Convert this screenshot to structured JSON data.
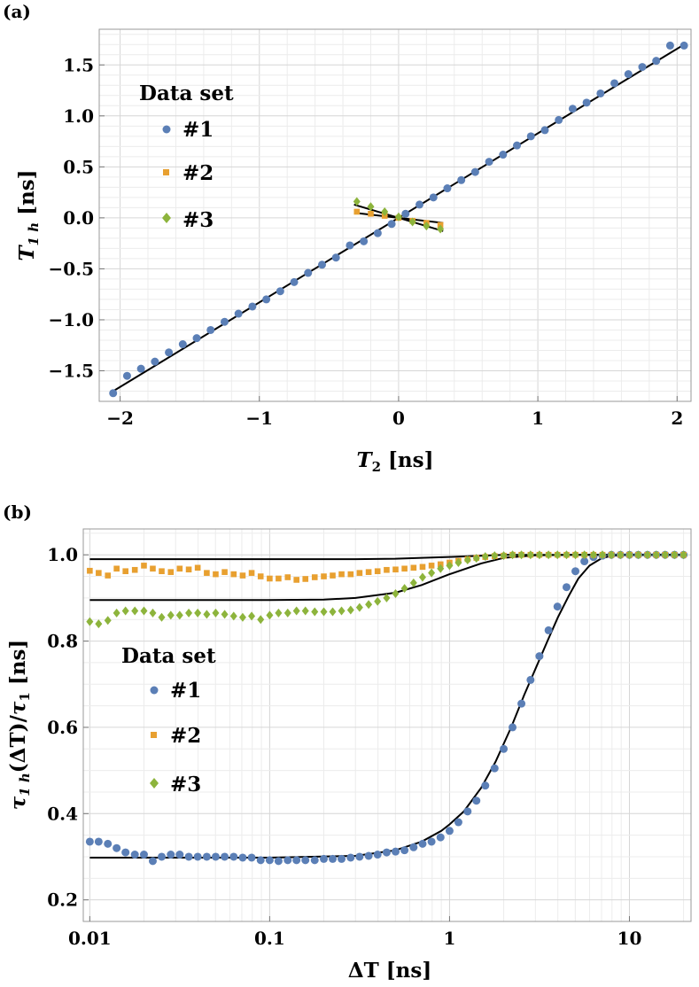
{
  "colors": {
    "set1": "#5b7fb6",
    "set2": "#e8a030",
    "set3": "#8db43c",
    "fit": "#000000"
  },
  "chart_data": [
    {
      "panel_label": "(a)",
      "type": "scatter",
      "xlabel": "T2 [ns]",
      "ylabel": "T1h [ns]",
      "xlim": [
        -2.15,
        2.1
      ],
      "ylim": [
        -1.8,
        1.85
      ],
      "x_scale": "linear",
      "grid": true,
      "legend": {
        "title": "Data set",
        "position": "upper-left"
      },
      "x_ticks": [
        "−2",
        "−1",
        "0",
        "1",
        "2"
      ],
      "x_tick_values": [
        -2,
        -1,
        0,
        1,
        2
      ],
      "y_ticks": [
        "−1.5",
        "−1.0",
        "−0.5",
        "0.0",
        "0.5",
        "1.0",
        "1.5"
      ],
      "y_tick_values": [
        -1.5,
        -1.0,
        -0.5,
        0.0,
        0.5,
        1.0,
        1.5
      ],
      "series": [
        {
          "name": "#1",
          "marker": "circle",
          "color": "#5b7fb6",
          "x": [
            -2.05,
            -1.95,
            -1.85,
            -1.75,
            -1.65,
            -1.55,
            -1.45,
            -1.35,
            -1.25,
            -1.15,
            -1.05,
            -0.95,
            -0.85,
            -0.75,
            -0.65,
            -0.55,
            -0.45,
            -0.35,
            -0.25,
            -0.15,
            -0.05,
            0.05,
            0.15,
            0.25,
            0.35,
            0.45,
            0.55,
            0.65,
            0.75,
            0.85,
            0.95,
            1.05,
            1.15,
            1.25,
            1.35,
            1.45,
            1.55,
            1.65,
            1.75,
            1.85,
            1.95,
            2.05
          ],
          "y": [
            -1.72,
            -1.55,
            -1.48,
            -1.41,
            -1.32,
            -1.24,
            -1.18,
            -1.1,
            -1.02,
            -0.94,
            -0.87,
            -0.8,
            -0.72,
            -0.63,
            -0.54,
            -0.46,
            -0.39,
            -0.27,
            -0.23,
            -0.15,
            -0.06,
            0.04,
            0.13,
            0.2,
            0.29,
            0.37,
            0.45,
            0.55,
            0.62,
            0.71,
            0.8,
            0.86,
            0.96,
            1.07,
            1.13,
            1.22,
            1.32,
            1.41,
            1.48,
            1.54,
            1.69,
            1.69
          ]
        },
        {
          "name": "#2",
          "marker": "square",
          "color": "#e8a030",
          "x": [
            -0.3,
            -0.2,
            -0.1,
            0.0,
            0.1,
            0.2,
            0.3
          ],
          "y": [
            0.06,
            0.04,
            0.02,
            0.0,
            -0.03,
            -0.05,
            -0.07
          ]
        },
        {
          "name": "#3",
          "marker": "diamond",
          "color": "#8db43c",
          "x": [
            -0.3,
            -0.2,
            -0.1,
            0.0,
            0.1,
            0.2,
            0.3
          ],
          "y": [
            0.16,
            0.11,
            0.06,
            0.01,
            -0.04,
            -0.08,
            -0.11
          ]
        }
      ],
      "fits": [
        {
          "x": [
            -2.05,
            2.05
          ],
          "y": [
            -1.7,
            1.7
          ]
        },
        {
          "x": [
            -0.32,
            0.32
          ],
          "y": [
            0.05,
            -0.05
          ]
        },
        {
          "x": [
            -0.32,
            0.32
          ],
          "y": [
            0.13,
            -0.13
          ]
        }
      ]
    },
    {
      "panel_label": "(b)",
      "type": "scatter",
      "xlabel": "ΔT [ns]",
      "ylabel": "τ1h(ΔT)/τ1 [ns]",
      "xlim": [
        0.0092,
        22
      ],
      "ylim": [
        0.15,
        1.06
      ],
      "x_scale": "log",
      "grid": true,
      "legend": {
        "title": "Data set",
        "position": "middle-left"
      },
      "x_ticks": [
        "0.01",
        "0.1",
        "1",
        "10"
      ],
      "x_tick_values": [
        0.01,
        0.1,
        1,
        10
      ],
      "y_ticks": [
        "0.2",
        "0.4",
        "0.6",
        "0.8",
        "1.0"
      ],
      "y_tick_values": [
        0.2,
        0.4,
        0.6,
        0.8,
        1.0
      ],
      "series": [
        {
          "name": "#1",
          "marker": "circle",
          "color": "#5b7fb6",
          "x": [
            0.01,
            0.0112,
            0.0126,
            0.0141,
            0.0158,
            0.0178,
            0.02,
            0.0224,
            0.0251,
            0.0282,
            0.0316,
            0.0355,
            0.0398,
            0.0447,
            0.0501,
            0.0562,
            0.0631,
            0.0708,
            0.0794,
            0.0891,
            0.1,
            0.112,
            0.126,
            0.141,
            0.158,
            0.178,
            0.2,
            0.224,
            0.251,
            0.282,
            0.316,
            0.355,
            0.398,
            0.447,
            0.501,
            0.562,
            0.631,
            0.708,
            0.794,
            0.891,
            1.0,
            1.12,
            1.26,
            1.41,
            1.58,
            1.78,
            2.0,
            2.24,
            2.51,
            2.82,
            3.16,
            3.55,
            3.98,
            4.47,
            5.01,
            5.62,
            6.31,
            7.08,
            7.94,
            8.91,
            10.0,
            11.2,
            12.6,
            14.1,
            15.8,
            17.8,
            20.0
          ],
          "y": [
            0.335,
            0.335,
            0.33,
            0.32,
            0.31,
            0.305,
            0.305,
            0.29,
            0.3,
            0.305,
            0.305,
            0.3,
            0.3,
            0.3,
            0.3,
            0.3,
            0.3,
            0.298,
            0.298,
            0.292,
            0.292,
            0.29,
            0.292,
            0.292,
            0.292,
            0.292,
            0.295,
            0.295,
            0.295,
            0.298,
            0.3,
            0.302,
            0.305,
            0.31,
            0.312,
            0.315,
            0.322,
            0.33,
            0.335,
            0.345,
            0.36,
            0.38,
            0.405,
            0.43,
            0.465,
            0.505,
            0.55,
            0.6,
            0.655,
            0.71,
            0.765,
            0.825,
            0.88,
            0.925,
            0.962,
            0.985,
            0.995,
            0.998,
            1.0,
            1.0,
            1.0,
            1.0,
            1.0,
            1.0,
            1.0,
            1.0,
            1.0
          ]
        },
        {
          "name": "#2",
          "marker": "square",
          "color": "#e8a030",
          "x": [
            0.01,
            0.0112,
            0.0126,
            0.0141,
            0.0158,
            0.0178,
            0.02,
            0.0224,
            0.0251,
            0.0282,
            0.0316,
            0.0355,
            0.0398,
            0.0447,
            0.0501,
            0.0562,
            0.0631,
            0.0708,
            0.0794,
            0.0891,
            0.1,
            0.112,
            0.126,
            0.141,
            0.158,
            0.178,
            0.2,
            0.224,
            0.251,
            0.282,
            0.316,
            0.355,
            0.398,
            0.447,
            0.501,
            0.562,
            0.631,
            0.708,
            0.794,
            0.891,
            1.0,
            1.12,
            1.26,
            1.41,
            1.58,
            1.78,
            2.0,
            2.24,
            2.51,
            2.82,
            3.16,
            3.55,
            3.98,
            4.47,
            5.01,
            5.62,
            6.31,
            7.08,
            7.94,
            8.91,
            10.0,
            11.2,
            12.6,
            14.1,
            15.8,
            17.8,
            20.0
          ],
          "y": [
            0.963,
            0.958,
            0.952,
            0.968,
            0.962,
            0.965,
            0.975,
            0.968,
            0.962,
            0.96,
            0.968,
            0.966,
            0.97,
            0.958,
            0.955,
            0.96,
            0.955,
            0.952,
            0.958,
            0.95,
            0.945,
            0.945,
            0.948,
            0.942,
            0.944,
            0.948,
            0.95,
            0.952,
            0.955,
            0.955,
            0.958,
            0.96,
            0.962,
            0.965,
            0.966,
            0.968,
            0.97,
            0.972,
            0.975,
            0.978,
            0.982,
            0.986,
            0.99,
            0.993,
            0.995,
            0.997,
            0.998,
            1.0,
            1.0,
            1.0,
            1.0,
            1.0,
            1.0,
            1.0,
            1.0,
            1.0,
            1.0,
            1.0,
            1.0,
            1.0,
            1.0,
            1.0,
            1.0,
            1.0,
            1.0,
            1.0,
            1.0
          ]
        },
        {
          "name": "#3",
          "marker": "diamond",
          "color": "#8db43c",
          "x": [
            0.01,
            0.0112,
            0.0126,
            0.0141,
            0.0158,
            0.0178,
            0.02,
            0.0224,
            0.0251,
            0.0282,
            0.0316,
            0.0355,
            0.0398,
            0.0447,
            0.0501,
            0.0562,
            0.0631,
            0.0708,
            0.0794,
            0.0891,
            0.1,
            0.112,
            0.126,
            0.141,
            0.158,
            0.178,
            0.2,
            0.224,
            0.251,
            0.282,
            0.316,
            0.355,
            0.398,
            0.447,
            0.501,
            0.562,
            0.631,
            0.708,
            0.794,
            0.891,
            1.0,
            1.12,
            1.26,
            1.41,
            1.58,
            1.78,
            2.0,
            2.24,
            2.51,
            2.82,
            3.16,
            3.55,
            3.98,
            4.47,
            5.01,
            5.62,
            6.31,
            7.08,
            7.94,
            8.91,
            10.0,
            11.2,
            12.6,
            14.1,
            15.8,
            17.8,
            20.0
          ],
          "y": [
            0.845,
            0.84,
            0.848,
            0.865,
            0.87,
            0.87,
            0.87,
            0.865,
            0.855,
            0.86,
            0.86,
            0.865,
            0.865,
            0.862,
            0.865,
            0.862,
            0.858,
            0.855,
            0.858,
            0.85,
            0.86,
            0.865,
            0.865,
            0.87,
            0.87,
            0.868,
            0.868,
            0.868,
            0.87,
            0.872,
            0.878,
            0.885,
            0.892,
            0.9,
            0.91,
            0.922,
            0.935,
            0.948,
            0.958,
            0.968,
            0.975,
            0.982,
            0.988,
            0.992,
            0.996,
            0.998,
            0.998,
            1.0,
            1.0,
            1.0,
            1.0,
            1.0,
            1.0,
            1.0,
            1.0,
            1.0,
            1.0,
            1.0,
            1.0,
            1.0,
            1.0,
            1.0,
            1.0,
            1.0,
            1.0,
            1.0,
            1.0
          ]
        }
      ],
      "fits": [
        {
          "x": [
            0.01,
            0.1,
            0.3,
            0.5,
            0.7,
            0.9,
            1.0,
            1.2,
            1.5,
            1.8,
            2.2,
            2.6,
            3.0,
            3.5,
            4.0,
            4.6,
            5.2,
            6.0,
            7.0,
            8.0,
            10.0,
            20.0
          ],
          "y": [
            0.298,
            0.298,
            0.302,
            0.315,
            0.335,
            0.36,
            0.375,
            0.405,
            0.46,
            0.52,
            0.6,
            0.675,
            0.735,
            0.8,
            0.855,
            0.905,
            0.945,
            0.975,
            0.992,
            0.998,
            1.0,
            1.0
          ]
        },
        {
          "x": [
            0.01,
            0.1,
            0.3,
            0.5,
            0.7,
            1.0,
            1.5,
            2.0,
            3.0,
            5.0,
            20.0
          ],
          "y": [
            0.99,
            0.99,
            0.99,
            0.991,
            0.993,
            0.995,
            0.998,
            1.0,
            1.0,
            1.0,
            1.0
          ]
        },
        {
          "x": [
            0.01,
            0.1,
            0.2,
            0.3,
            0.5,
            0.7,
            1.0,
            1.5,
            2.0,
            3.0,
            5.0,
            20.0
          ],
          "y": [
            0.895,
            0.895,
            0.896,
            0.9,
            0.912,
            0.93,
            0.955,
            0.98,
            0.993,
            0.999,
            1.0,
            1.0
          ]
        }
      ]
    }
  ]
}
